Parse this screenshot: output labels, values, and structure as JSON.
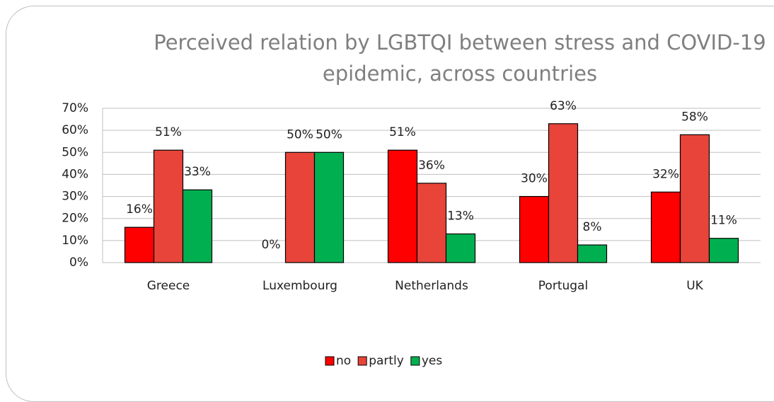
{
  "chart_data": {
    "type": "bar",
    "title": "Perceived relation by LGBTQI between stress and COVID-19 epidemic, across countries",
    "categories": [
      "Greece",
      "Luxembourg",
      "Netherlands",
      "Portugal",
      "UK"
    ],
    "series": [
      {
        "name": "no",
        "color": "#ff0000",
        "values": [
          16,
          0,
          51,
          30,
          32
        ],
        "value_labels": [
          "16%",
          "0%",
          "51%",
          "30%",
          "32%"
        ]
      },
      {
        "name": "partly",
        "color": "#e8443a",
        "values": [
          51,
          50,
          36,
          63,
          58
        ],
        "value_labels": [
          "51%",
          "50%",
          "36%",
          "63%",
          "58%"
        ]
      },
      {
        "name": "yes",
        "color": "#00b050",
        "values": [
          33,
          50,
          13,
          8,
          11
        ],
        "value_labels": [
          "33%",
          "50%",
          "13%",
          "8%",
          "11%"
        ]
      }
    ],
    "ylim": [
      0,
      70
    ],
    "yticks": [
      {
        "value": 0,
        "label": "0%"
      },
      {
        "value": 10,
        "label": "10%"
      },
      {
        "value": 20,
        "label": "20%"
      },
      {
        "value": 30,
        "label": "30%"
      },
      {
        "value": 40,
        "label": "40%"
      },
      {
        "value": 50,
        "label": "50%"
      },
      {
        "value": 60,
        "label": "60%"
      },
      {
        "value": 70,
        "label": "70%"
      }
    ],
    "grid": true,
    "legend": "bottom"
  }
}
